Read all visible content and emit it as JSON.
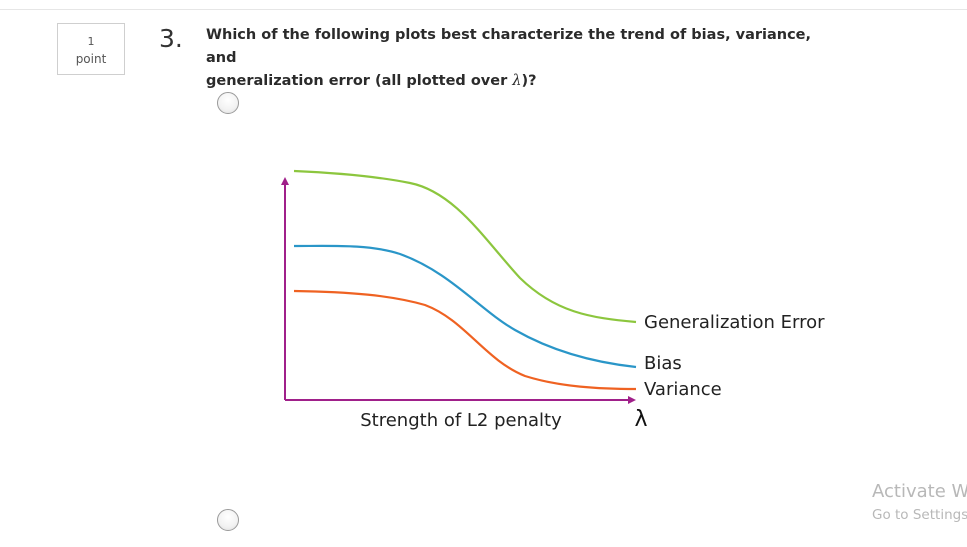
{
  "question": {
    "points_value": "1",
    "points_label": "point",
    "number": "3.",
    "text_line1": "Which of the following plots best characterize the trend of bias, variance, and",
    "text_line2_before": "generalization error (all plotted over ",
    "lambda_symbol": "λ",
    "text_line2_after": ")?"
  },
  "plot": {
    "xlabel": "Strength of L2 penalty",
    "x_axis_symbol": "λ",
    "axis_color": "#a0208a",
    "curves": [
      {
        "label": "Generalization Error",
        "color": "#8cc63e"
      },
      {
        "label": "Bias",
        "color": "#2a96c8"
      },
      {
        "label": "Variance",
        "color": "#ef6222"
      }
    ]
  },
  "watermark": {
    "line1": "Activate W",
    "line2": "Go to Settings"
  }
}
